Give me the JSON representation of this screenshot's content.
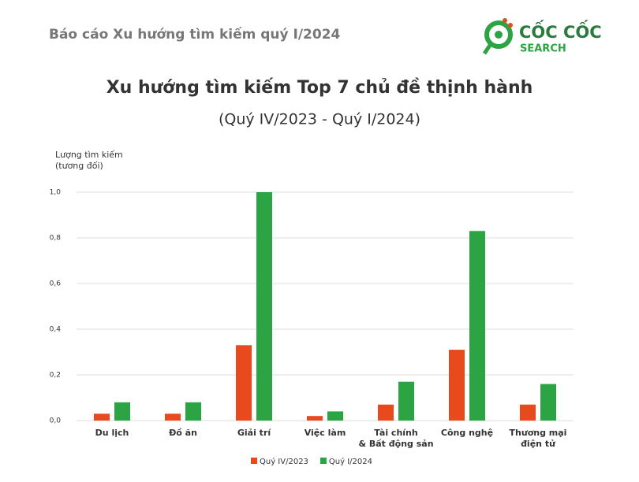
{
  "header": {
    "report_title": "Báo cáo Xu hướng tìm kiếm quý I/2024",
    "logo": {
      "name": "CỐC CỐC",
      "tagline": "SEARCH"
    }
  },
  "chart_data": {
    "type": "bar",
    "title": "Xu hướng tìm kiếm Top 7 chủ đề thịnh hành",
    "subtitle": "(Quý IV/2023 - Quý I/2024)",
    "y_label": "Lượng tìm kiếm\n(tương đối)",
    "categories": [
      "Du lịch",
      "Đồ ăn",
      "Giải trí",
      "Việc làm",
      "Tài chính\n& Bất động sản",
      "Công nghệ",
      "Thương mại\nđiện tử"
    ],
    "series": [
      {
        "name": "Quý IV/2023",
        "color": "#e8491d",
        "values": [
          0.03,
          0.03,
          0.33,
          0.02,
          0.07,
          0.31,
          0.07
        ]
      },
      {
        "name": "Quý I/2024",
        "color": "#2ca443",
        "values": [
          0.08,
          0.08,
          1.0,
          0.04,
          0.17,
          0.83,
          0.16
        ]
      }
    ],
    "ylim": [
      0,
      1.0
    ],
    "yticks": [
      {
        "value": 0,
        "label": "0,0"
      },
      {
        "value": 0.2,
        "label": "0,2"
      },
      {
        "value": 0.4,
        "label": "0,4"
      },
      {
        "value": 0.6,
        "label": "0,6"
      },
      {
        "value": 0.8,
        "label": "0,8"
      },
      {
        "value": 1.0,
        "label": "1,0"
      }
    ],
    "grid": true,
    "legend": "bottom"
  }
}
